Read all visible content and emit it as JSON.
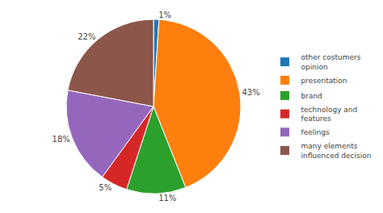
{
  "chart_data": {
    "type": "pie",
    "categories": [
      "other costumers\nopinion",
      "presentation",
      "brand",
      "technology and\nfeatures",
      "feelings",
      "many elements\ninfluenced decision"
    ],
    "values": [
      1,
      43,
      11,
      5,
      18,
      22
    ],
    "value_labels": [
      "1%",
      "43%",
      "11%",
      "5%",
      "18%",
      "22%"
    ],
    "data_labels": true,
    "legend": "right"
  }
}
